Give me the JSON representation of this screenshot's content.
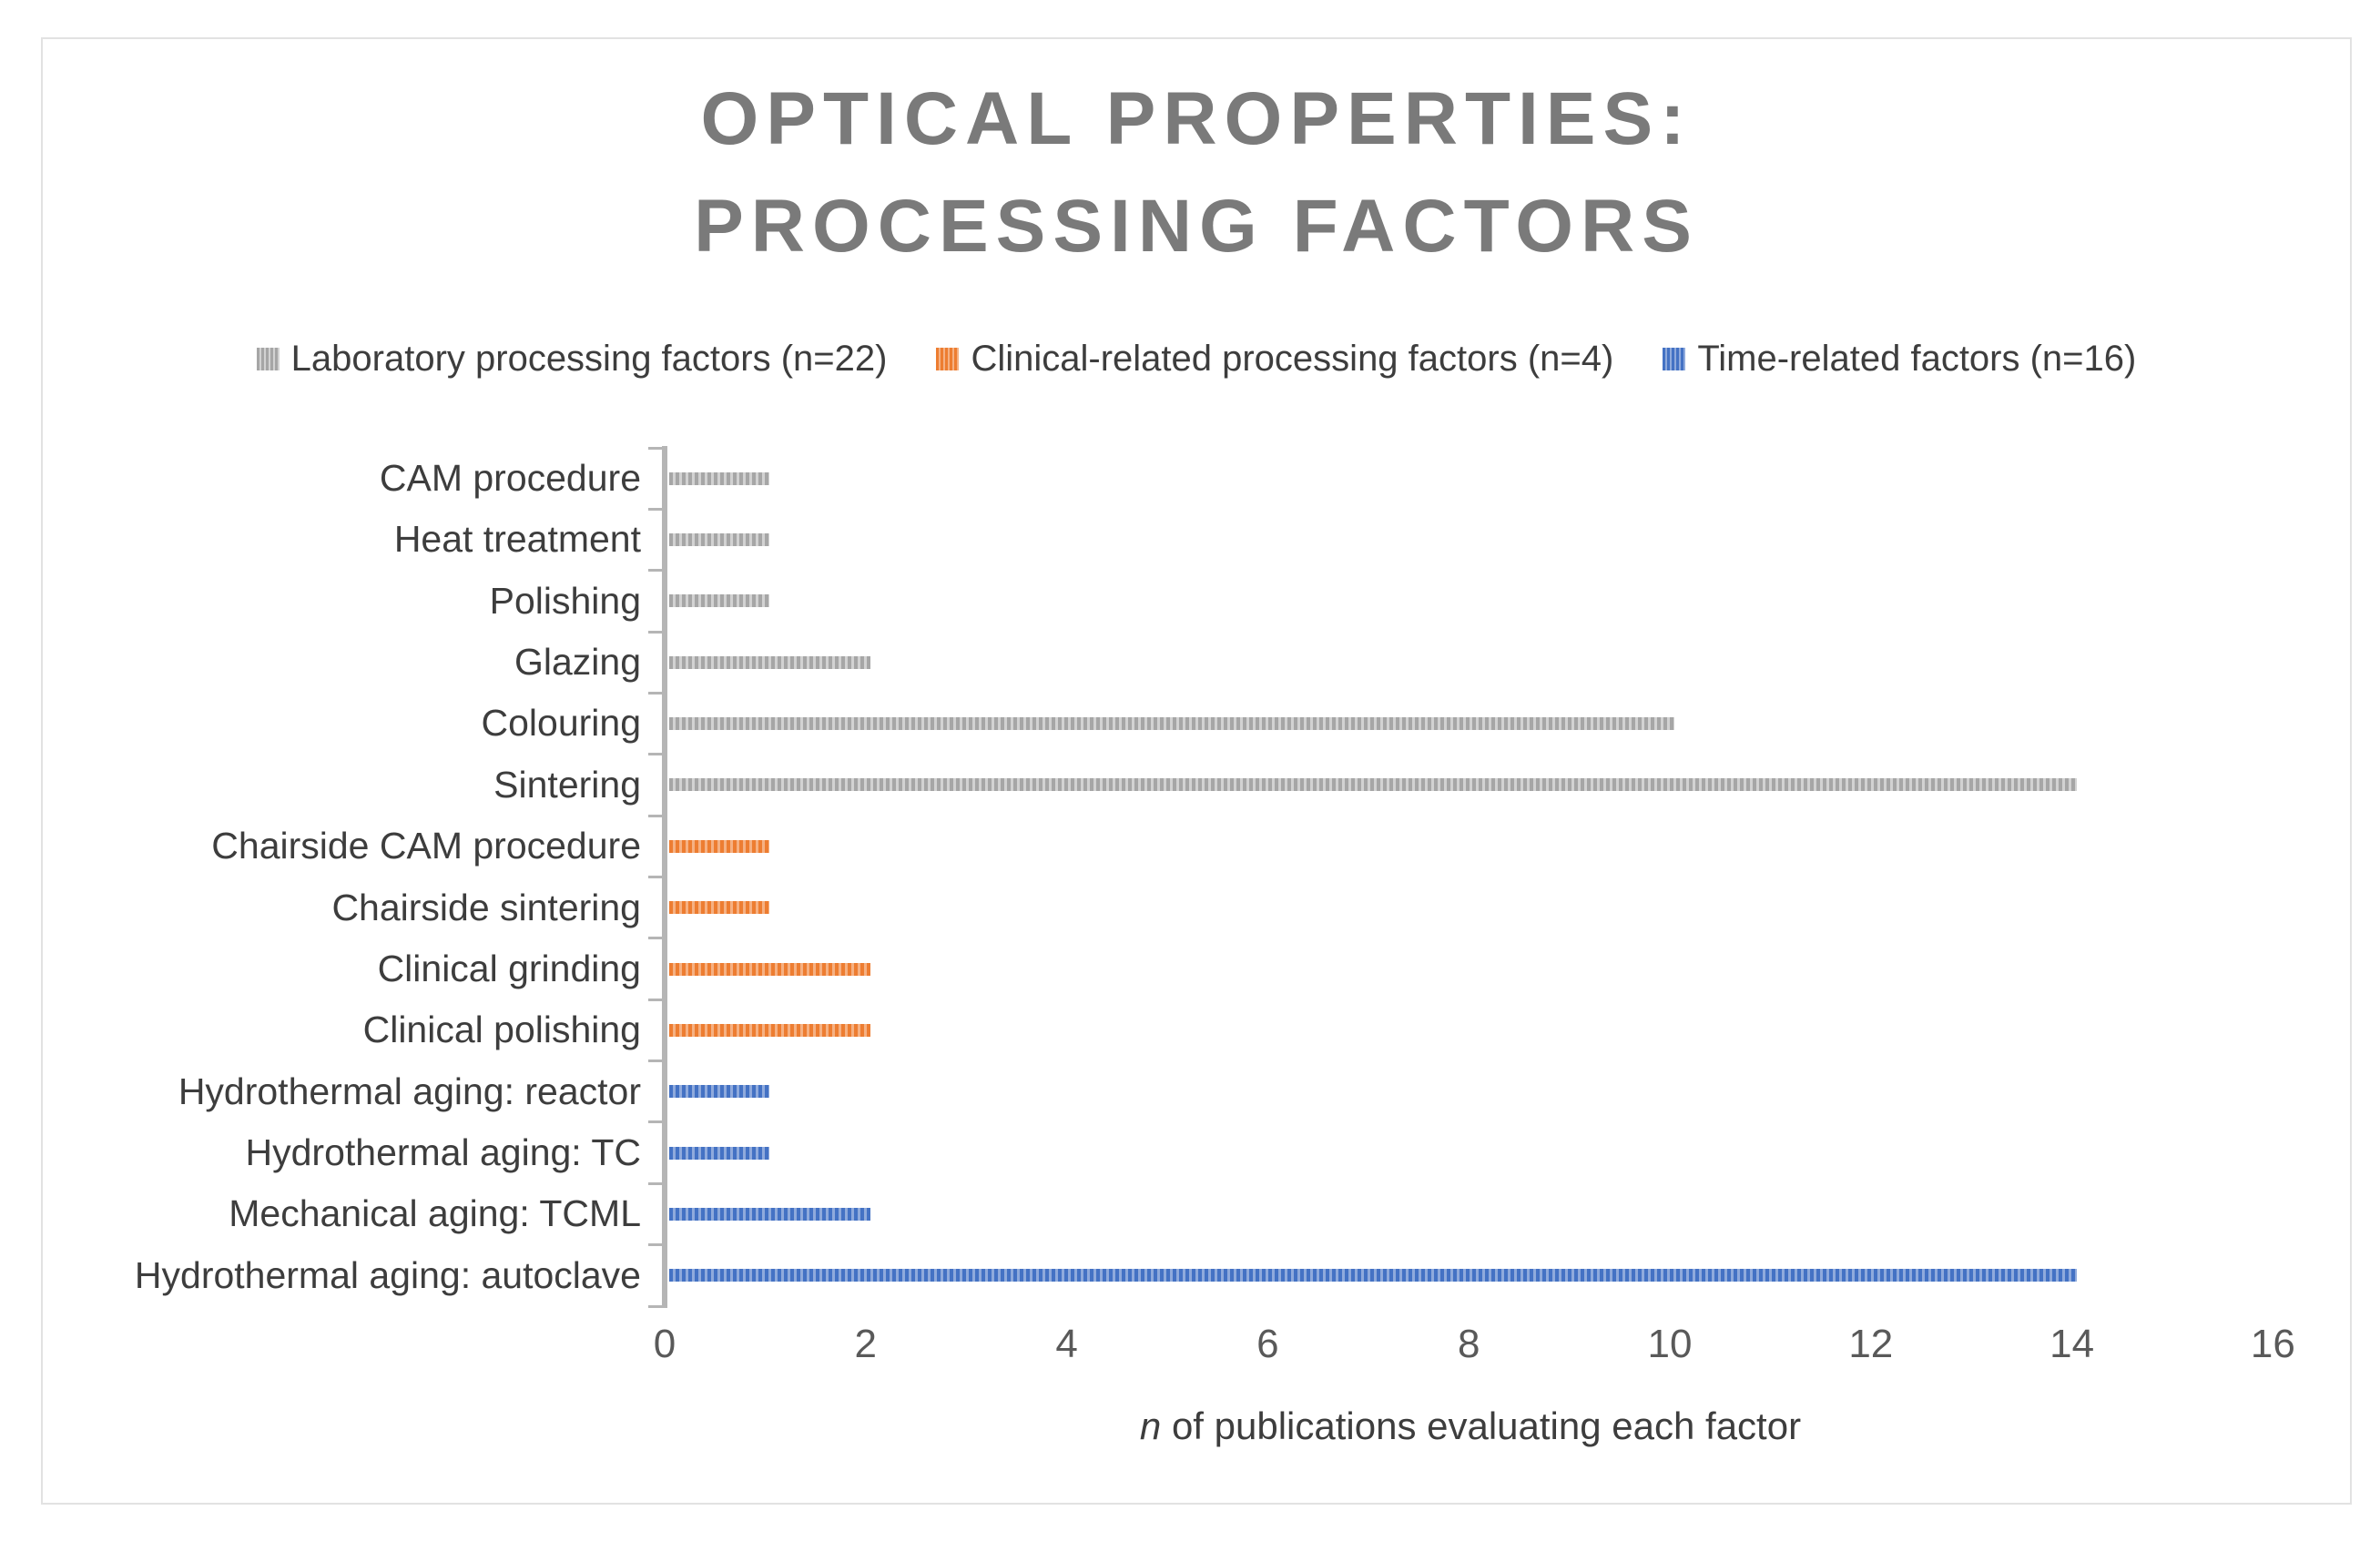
{
  "chart_data": {
    "type": "bar",
    "orientation": "horizontal",
    "title": [
      "OPTICAL PROPERTIES:",
      "PROCESSING FACTORS"
    ],
    "xlabel_italic": "n",
    "xlabel_rest": " of publications evaluating each factor",
    "xlim": [
      0,
      16
    ],
    "xticks": [
      0,
      2,
      4,
      6,
      8,
      10,
      12,
      14,
      16
    ],
    "grid": false,
    "legend_position": "top",
    "bar_pattern": "vertical-stripes",
    "title_color": "#7a7a7a",
    "axis_color": "#b5b5b5",
    "tick_label_color": "#595959",
    "text_color": "#3d3d3d",
    "series": [
      {
        "key": "lab",
        "label": "Laboratory processing factors (n=22)",
        "color": "#a6a6a6",
        "color_light": "#d2d2d2"
      },
      {
        "key": "clinical",
        "label": "Clinical-related processing factors (n=4)",
        "color": "#ed7d31",
        "color_light": "#f5b183"
      },
      {
        "key": "time",
        "label": "Time-related factors (n=16)",
        "color": "#4472c4",
        "color_light": "#8faadc"
      }
    ],
    "rows": [
      {
        "category": "CAM procedure",
        "series": "lab",
        "value": 1
      },
      {
        "category": "Heat treatment",
        "series": "lab",
        "value": 1
      },
      {
        "category": "Polishing",
        "series": "lab",
        "value": 1
      },
      {
        "category": "Glazing",
        "series": "lab",
        "value": 2
      },
      {
        "category": "Colouring",
        "series": "lab",
        "value": 10
      },
      {
        "category": "Sintering",
        "series": "lab",
        "value": 14
      },
      {
        "category": "Chairside CAM procedure",
        "series": "clinical",
        "value": 1
      },
      {
        "category": "Chairside sintering",
        "series": "clinical",
        "value": 1
      },
      {
        "category": "Clinical grinding",
        "series": "clinical",
        "value": 2
      },
      {
        "category": "Clinical polishing",
        "series": "clinical",
        "value": 2
      },
      {
        "category": "Hydrothermal aging: reactor",
        "series": "time",
        "value": 1
      },
      {
        "category": "Hydrothermal aging: TC",
        "series": "time",
        "value": 1
      },
      {
        "category": "Mechanical aging: TCML",
        "series": "time",
        "value": 2
      },
      {
        "category": "Hydrothermal aging: autoclave",
        "series": "time",
        "value": 14
      }
    ]
  }
}
